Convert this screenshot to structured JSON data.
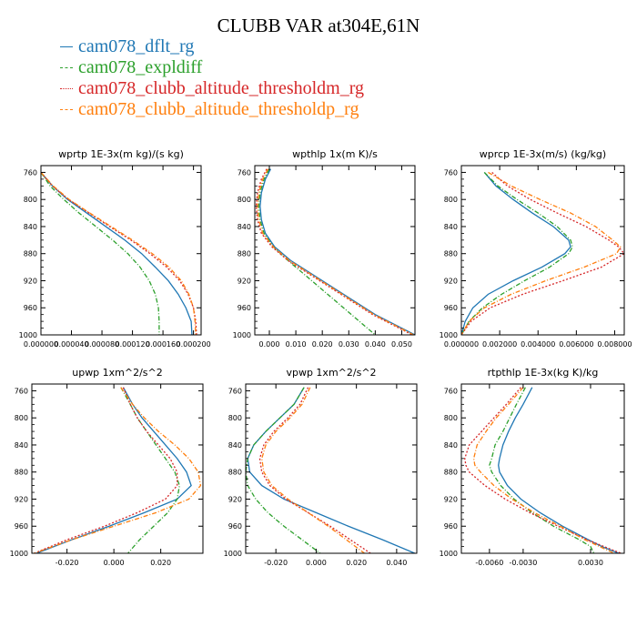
{
  "title": "CLUBB VAR at304E,61N",
  "colors": {
    "s1": "#1f77b4",
    "s2": "#2ca02c",
    "s3": "#d62728",
    "s4": "#ff7f0e"
  },
  "legend": [
    {
      "label": "cam078_dflt_rg",
      "color": "#1f77b4",
      "dash": "solid"
    },
    {
      "label": "cam078_expldiff",
      "color": "#2ca02c",
      "dash": "dashdot"
    },
    {
      "label": "cam078_clubb_altitude_thresholdm_rg",
      "color": "#d62728",
      "dash": "dotted"
    },
    {
      "label": "cam078_clubb_altitude_thresholdp_rg",
      "color": "#ff7f0e",
      "dash": "dashdot"
    }
  ],
  "chart_data": [
    {
      "type": "line",
      "title": "wprtp  1E-3x(m kg)/(s kg)",
      "xlim": [
        0.0,
        0.00021
      ],
      "ylim": [
        1000,
        750
      ],
      "xticks": [
        0.0,
        4e-05,
        8e-05,
        0.00012,
        0.00016,
        0.0002
      ],
      "xtick_labels": [
        "0.000000",
        "0.000040",
        "0.000080",
        "0.000120",
        "0.000160",
        "0.000200"
      ],
      "yticks": [
        760,
        800,
        840,
        880,
        920,
        960,
        1000
      ],
      "ytick_labels": [
        "760",
        "800",
        "840",
        "880",
        "920",
        "960",
        "1000"
      ],
      "y": [
        760,
        780,
        800,
        820,
        840,
        860,
        880,
        900,
        920,
        940,
        960,
        980,
        1000
      ],
      "series": [
        {
          "name": "cam078_dflt_rg",
          "values": [
            0.0,
            1.5e-05,
            3.5e-05,
            6e-05,
            8.5e-05,
            0.00011,
            0.000132,
            0.00015,
            0.000167,
            0.00018,
            0.00019,
            0.000197,
            0.000198
          ]
        },
        {
          "name": "cam078_expldiff",
          "values": [
            0.0,
            1.2e-05,
            3e-05,
            5e-05,
            7.2e-05,
            9.4e-05,
            0.000114,
            0.00013,
            0.000142,
            0.00015,
            0.000154,
            0.000155,
            0.000155
          ]
        },
        {
          "name": "cam078_clubb_altitude_thresholdm_rg",
          "values": [
            0.0,
            1.5e-05,
            3.6e-05,
            6.3e-05,
            9e-05,
            0.000118,
            0.000143,
            0.000165,
            0.000182,
            0.000193,
            0.0002,
            0.000203,
            0.000204
          ]
        },
        {
          "name": "cam078_clubb_altitude_thresholdp_rg",
          "values": [
            0.0,
            1.6e-05,
            3.7e-05,
            6.4e-05,
            9.2e-05,
            0.00012,
            0.000146,
            0.000168,
            0.000184,
            0.000194,
            0.0002,
            0.000202,
            0.000203
          ]
        }
      ]
    },
    {
      "type": "line",
      "title": "wpthlp  1x(m K)/s",
      "xlim": [
        -0.0055,
        0.055
      ],
      "ylim": [
        1000,
        750
      ],
      "xticks": [
        0.0,
        0.01,
        0.02,
        0.03,
        0.04,
        0.05
      ],
      "xtick_labels": [
        "0.000",
        "0.010",
        "0.020",
        "0.030",
        "0.040",
        "0.050"
      ],
      "yticks": [
        760,
        800,
        840,
        880,
        920,
        960,
        1000
      ],
      "ytick_labels": [
        "760",
        "800",
        "840",
        "880",
        "920",
        "960",
        "1000"
      ],
      "y": [
        755,
        770,
        790,
        810,
        830,
        850,
        870,
        890,
        910,
        930,
        950,
        970,
        990,
        1000
      ],
      "series": [
        {
          "name": "cam078_dflt_rg",
          "values": [
            0.0005,
            -0.0015,
            -0.003,
            -0.0035,
            -0.003,
            -0.0015,
            0.002,
            0.008,
            0.016,
            0.024,
            0.032,
            0.04,
            0.05,
            0.055
          ]
        },
        {
          "name": "cam078_expldiff",
          "values": [
            0.0,
            -0.002,
            -0.0035,
            -0.004,
            -0.0035,
            -0.002,
            0.0015,
            0.007,
            0.013,
            0.019,
            0.025,
            0.031,
            0.037,
            0.04
          ]
        },
        {
          "name": "cam078_clubb_altitude_thresholdm_rg",
          "values": [
            -0.001,
            -0.003,
            -0.0045,
            -0.005,
            -0.0045,
            -0.003,
            0.001,
            0.007,
            0.015,
            0.023,
            0.031,
            0.039,
            0.049,
            0.054
          ]
        },
        {
          "name": "cam078_clubb_altitude_thresholdp_rg",
          "values": [
            -0.0005,
            -0.0025,
            -0.004,
            -0.0045,
            -0.004,
            -0.0025,
            0.0015,
            0.0075,
            0.0155,
            0.0235,
            0.0315,
            0.0395,
            0.0495,
            0.0545
          ]
        }
      ]
    },
    {
      "type": "line",
      "title": "wprcp  1E-3x(m/s) (kg/kg)",
      "xlim": [
        0.0,
        0.0085
      ],
      "ylim": [
        1000,
        750
      ],
      "xticks": [
        0.0,
        0.002,
        0.004,
        0.006,
        0.008
      ],
      "xtick_labels": [
        "0.000000",
        "0.002000",
        "0.004000",
        "0.006000",
        "0.008000"
      ],
      "yticks": [
        760,
        800,
        840,
        880,
        920,
        960,
        1000
      ],
      "ytick_labels": [
        "760",
        "800",
        "840",
        "880",
        "920",
        "960",
        "1000"
      ],
      "y": [
        760,
        780,
        800,
        820,
        840,
        860,
        870,
        880,
        900,
        920,
        940,
        960,
        980,
        1000
      ],
      "series": [
        {
          "name": "cam078_dflt_rg",
          "values": [
            0.0012,
            0.0018,
            0.0027,
            0.0037,
            0.0048,
            0.0056,
            0.0057,
            0.0054,
            0.0042,
            0.0027,
            0.0014,
            0.0006,
            0.0002,
            0.0
          ]
        },
        {
          "name": "cam078_expldiff",
          "values": [
            0.0012,
            0.0019,
            0.0029,
            0.004,
            0.005,
            0.0057,
            0.0058,
            0.0056,
            0.0046,
            0.0033,
            0.0021,
            0.0011,
            0.0004,
            0.0
          ]
        },
        {
          "name": "cam078_clubb_altitude_thresholdm_rg",
          "values": [
            0.0016,
            0.0024,
            0.0036,
            0.005,
            0.0065,
            0.0077,
            0.0082,
            0.0085,
            0.0073,
            0.0053,
            0.0032,
            0.0015,
            0.0005,
            0.0
          ]
        },
        {
          "name": "cam078_clubb_altitude_thresholdp_rg",
          "values": [
            0.0014,
            0.0026,
            0.0041,
            0.0057,
            0.007,
            0.0079,
            0.0083,
            0.0081,
            0.0064,
            0.0044,
            0.0026,
            0.0012,
            0.0004,
            0.0
          ]
        }
      ]
    },
    {
      "type": "line",
      "title": "upwp  1xm^2/s^2",
      "xlim": [
        -0.035,
        0.038
      ],
      "ylim": [
        1000,
        750
      ],
      "xticks": [
        -0.02,
        0.0,
        0.02
      ],
      "xtick_labels": [
        "-0.020",
        "0.000",
        "0.020"
      ],
      "yticks": [
        760,
        800,
        840,
        880,
        920,
        960,
        1000
      ],
      "ytick_labels": [
        "760",
        "800",
        "840",
        "880",
        "920",
        "960",
        "1000"
      ],
      "y": [
        755,
        780,
        800,
        820,
        840,
        860,
        880,
        900,
        920,
        940,
        960,
        980,
        1000
      ],
      "series": [
        {
          "name": "cam078_dflt_rg",
          "values": [
            0.004,
            0.008,
            0.012,
            0.017,
            0.022,
            0.027,
            0.031,
            0.033,
            0.027,
            0.013,
            -0.002,
            -0.018,
            -0.033
          ]
        },
        {
          "name": "cam078_expldiff",
          "values": [
            0.003,
            0.007,
            0.01,
            0.014,
            0.018,
            0.022,
            0.026,
            0.028,
            0.027,
            0.023,
            0.017,
            0.011,
            0.006
          ]
        },
        {
          "name": "cam078_clubb_altitude_thresholdm_rg",
          "values": [
            0.004,
            0.007,
            0.01,
            0.014,
            0.019,
            0.024,
            0.027,
            0.027,
            0.022,
            0.01,
            -0.004,
            -0.02,
            -0.034
          ]
        },
        {
          "name": "cam078_clubb_altitude_thresholdp_rg",
          "values": [
            0.003,
            0.008,
            0.013,
            0.019,
            0.026,
            0.032,
            0.036,
            0.037,
            0.032,
            0.018,
            0.0,
            -0.018,
            -0.034
          ]
        }
      ]
    },
    {
      "type": "line",
      "title": "vpwp  1xm^2/s^2",
      "xlim": [
        -0.035,
        0.05
      ],
      "ylim": [
        1000,
        750
      ],
      "xticks": [
        -0.02,
        0.0,
        0.02,
        0.04
      ],
      "xtick_labels": [
        "-0.020",
        "0.000",
        "0.020",
        "0.040"
      ],
      "yticks": [
        760,
        800,
        840,
        880,
        920,
        960,
        1000
      ],
      "ytick_labels": [
        "760",
        "800",
        "840",
        "880",
        "920",
        "960",
        "1000"
      ],
      "y": [
        755,
        780,
        800,
        820,
        840,
        860,
        880,
        900,
        920,
        940,
        960,
        980,
        1000
      ],
      "series": [
        {
          "name": "cam078_dflt_rg",
          "values": [
            -0.006,
            -0.011,
            -0.018,
            -0.025,
            -0.031,
            -0.034,
            -0.033,
            -0.027,
            -0.016,
            0.0,
            0.016,
            0.033,
            0.049
          ]
        },
        {
          "name": "cam078_expldiff",
          "values": [
            -0.006,
            -0.011,
            -0.018,
            -0.025,
            -0.031,
            -0.034,
            -0.035,
            -0.034,
            -0.03,
            -0.024,
            -0.016,
            -0.007,
            0.002
          ]
        },
        {
          "name": "cam078_clubb_altitude_thresholdm_rg",
          "values": [
            -0.004,
            -0.008,
            -0.014,
            -0.021,
            -0.026,
            -0.028,
            -0.027,
            -0.023,
            -0.015,
            -0.004,
            0.007,
            0.017,
            0.027
          ]
        },
        {
          "name": "cam078_clubb_altitude_thresholdp_rg",
          "values": [
            -0.003,
            -0.007,
            -0.013,
            -0.02,
            -0.025,
            -0.027,
            -0.026,
            -0.022,
            -0.014,
            -0.004,
            0.006,
            0.015,
            0.024
          ]
        }
      ]
    },
    {
      "type": "line",
      "title": "rtpthlp  1E-3x(kg K)/kg",
      "xlim": [
        -0.0085,
        0.006
      ],
      "ylim": [
        1000,
        750
      ],
      "xticks": [
        -0.006,
        -0.003,
        0.003
      ],
      "xtick_labels": [
        "-0.0060",
        "-0.0030",
        "0.0030"
      ],
      "yticks": [
        760,
        800,
        840,
        880,
        920,
        960,
        1000
      ],
      "ytick_labels": [
        "760",
        "800",
        "840",
        "880",
        "920",
        "960",
        "1000"
      ],
      "y": [
        755,
        780,
        800,
        820,
        840,
        860,
        870,
        880,
        900,
        920,
        940,
        960,
        980,
        990,
        1000
      ],
      "series": [
        {
          "name": "cam078_dflt_rg",
          "values": [
            -0.0022,
            -0.003,
            -0.0037,
            -0.0043,
            -0.0048,
            -0.0051,
            -0.0052,
            -0.0051,
            -0.0044,
            -0.0032,
            -0.0015,
            0.0005,
            0.0028,
            0.004,
            0.0055
          ]
        },
        {
          "name": "cam078_expldiff",
          "values": [
            -0.0028,
            -0.0036,
            -0.0042,
            -0.0048,
            -0.0055,
            -0.0058,
            -0.006,
            -0.0058,
            -0.005,
            -0.0038,
            -0.0022,
            -0.0003,
            0.002,
            0.003,
            0.0033
          ]
        },
        {
          "name": "cam078_clubb_altitude_thresholdm_rg",
          "values": [
            -0.0032,
            -0.0045,
            -0.0056,
            -0.0067,
            -0.0078,
            -0.0082,
            -0.0081,
            -0.0078,
            -0.0064,
            -0.0046,
            -0.0024,
            0.0001,
            0.0027,
            0.0042,
            0.0057
          ]
        },
        {
          "name": "cam078_clubb_altitude_thresholdp_rg",
          "values": [
            -0.003,
            -0.0043,
            -0.0054,
            -0.0063,
            -0.0071,
            -0.0074,
            -0.0073,
            -0.0068,
            -0.0056,
            -0.004,
            -0.002,
            0.0003,
            0.0025,
            0.0038,
            0.0051
          ]
        }
      ]
    }
  ]
}
